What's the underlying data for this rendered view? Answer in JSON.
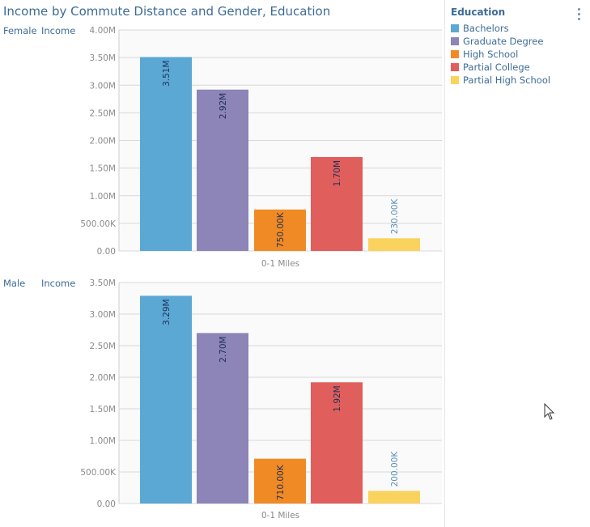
{
  "title": "Income by Commute Distance and Gender, Education",
  "legend": {
    "title": "Education",
    "items": [
      {
        "label": "Bachelors",
        "color": "#5ba8d4"
      },
      {
        "label": "Graduate Degree",
        "color": "#8d84b8"
      },
      {
        "label": "High School",
        "color": "#f08a24"
      },
      {
        "label": "Partial College",
        "color": "#e05e5b"
      },
      {
        "label": "Partial High School",
        "color": "#fad35e"
      }
    ]
  },
  "chart_data": [
    {
      "type": "bar",
      "gender": "Female",
      "measure": "Income",
      "categories": [
        "0-1 Miles"
      ],
      "series": [
        {
          "name": "Bachelors",
          "values": [
            3510000
          ],
          "label": "3.51M"
        },
        {
          "name": "Graduate Degree",
          "values": [
            2920000
          ],
          "label": "2.92M"
        },
        {
          "name": "High School",
          "values": [
            750000
          ],
          "label": "750.00K"
        },
        {
          "name": "Partial College",
          "values": [
            1700000
          ],
          "label": "1.70M"
        },
        {
          "name": "Partial High School",
          "values": [
            230000
          ],
          "label": "230.00K"
        }
      ],
      "ylim": [
        0,
        4000000
      ],
      "yticks": [
        0,
        500000,
        1000000,
        1500000,
        2000000,
        2500000,
        3000000,
        3500000,
        4000000
      ],
      "ytick_labels": [
        "0.00",
        "500.00K",
        "1.00M",
        "1.50M",
        "2.00M",
        "2.50M",
        "3.00M",
        "3.50M",
        "4.00M"
      ],
      "xlabel": "0-1 Miles"
    },
    {
      "type": "bar",
      "gender": "Male",
      "measure": "Income",
      "categories": [
        "0-1 Miles"
      ],
      "series": [
        {
          "name": "Bachelors",
          "values": [
            3290000
          ],
          "label": "3.29M"
        },
        {
          "name": "Graduate Degree",
          "values": [
            2700000
          ],
          "label": "2.70M"
        },
        {
          "name": "High School",
          "values": [
            710000
          ],
          "label": "710.00K"
        },
        {
          "name": "Partial College",
          "values": [
            1920000
          ],
          "label": "1.92M"
        },
        {
          "name": "Partial High School",
          "values": [
            200000
          ],
          "label": "200.00K"
        }
      ],
      "ylim": [
        0,
        3500000
      ],
      "yticks": [
        0,
        500000,
        1000000,
        1500000,
        2000000,
        2500000,
        3000000,
        3500000
      ],
      "ytick_labels": [
        "0.00",
        "500.00K",
        "1.00M",
        "1.50M",
        "2.00M",
        "2.50M",
        "3.00M",
        "3.50M"
      ],
      "xlabel": "0-1 Miles"
    }
  ]
}
